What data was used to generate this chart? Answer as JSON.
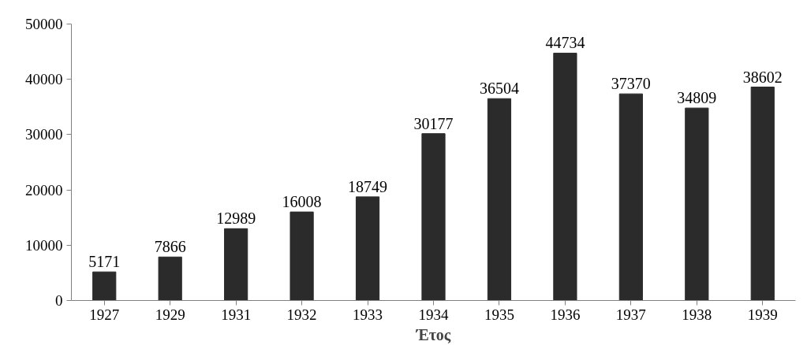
{
  "chart_data": {
    "type": "bar",
    "xlabel": "Έτος",
    "categories": [
      "1927",
      "1929",
      "1931",
      "1932",
      "1933",
      "1934",
      "1935",
      "1936",
      "1937",
      "1938",
      "1939"
    ],
    "values": [
      5171,
      7866,
      12989,
      16008,
      18749,
      30177,
      36504,
      44734,
      37370,
      34809,
      38602
    ],
    "color": "#2b2b2b",
    "ylim": [
      0,
      50000
    ],
    "yticks": [
      0,
      10000,
      20000,
      30000,
      40000,
      50000
    ],
    "grid": false,
    "data_labels": true
  }
}
